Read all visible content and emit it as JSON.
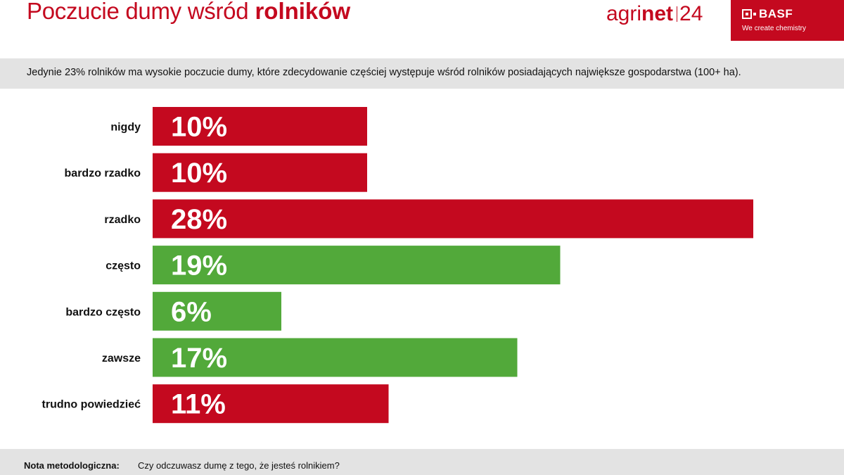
{
  "header": {
    "title_prefix": "Poczucie dumy wśród",
    "title_bold": "rolników",
    "agrinet_part1": "agri",
    "agrinet_part2": "net",
    "agrinet_part3": "24",
    "basf_name": "BASF",
    "basf_tagline": "We create chemistry"
  },
  "subtitle": "Jedynie 23% rolników ma wysokie poczucie dumy, które zdecydowanie częściej występuje wśród rolników posiadających największe gospodarstwa (100+ ha).",
  "footer": {
    "label": "Nota metodologiczna:",
    "question": "Czy odczuwasz dumę z tego, że jesteś rolnikiem?"
  },
  "colors": {
    "red": "#c4091f",
    "green": "#52a93a",
    "band": "#e3e3e3"
  },
  "chart_data": {
    "type": "bar",
    "orientation": "horizontal",
    "categories": [
      "nigdy",
      "bardzo rzadko",
      "rzadko",
      "często",
      "bardzo często",
      "zawsze",
      "trudno powiedzieć"
    ],
    "values": [
      10,
      10,
      28,
      19,
      6,
      17,
      11
    ],
    "value_labels": [
      "10%",
      "10%",
      "28%",
      "19%",
      "6%",
      "17%",
      "11%"
    ],
    "bar_colors": [
      "#c4091f",
      "#c4091f",
      "#c4091f",
      "#52a93a",
      "#52a93a",
      "#52a93a",
      "#c4091f"
    ],
    "xlim": [
      0,
      30
    ],
    "grid": false,
    "legend": false
  }
}
